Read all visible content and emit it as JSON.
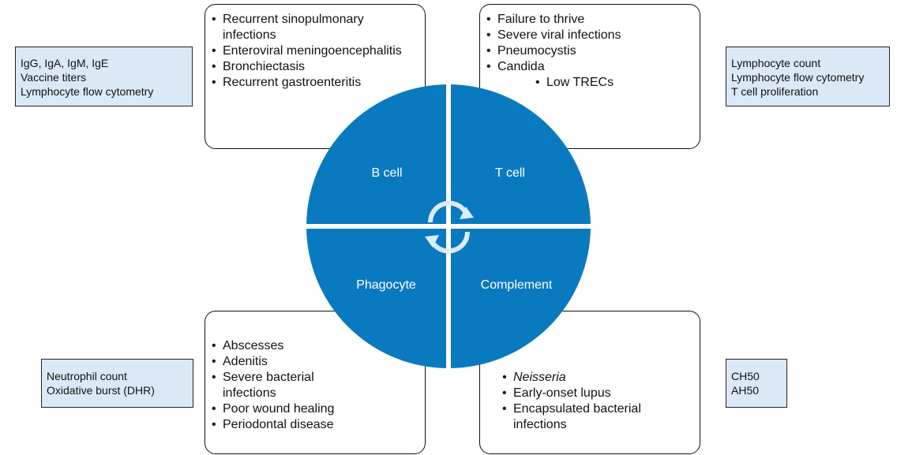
{
  "colors": {
    "quadrant": "#0a7ac0",
    "info_fill": "#dbe9f7",
    "text_on_blue": "#ffffff"
  },
  "quadrants": {
    "b_cell": "B cell",
    "t_cell": "T cell",
    "phagocyte": "Phagocyte",
    "complement": "Complement"
  },
  "b_cell": {
    "symptoms": [
      "Recurrent sinopulmonary infections",
      "Enteroviral meningoencephalitis",
      "Bronchiectasis",
      "Recurrent gastroenteritis"
    ],
    "tests": [
      "IgG, IgA, IgM, IgE",
      "Vaccine titers",
      "Lymphocyte flow cytometry"
    ]
  },
  "t_cell": {
    "symptoms": [
      "Failure to thrive",
      "Severe viral infections",
      "Pneumocystis",
      "Candida",
      "Low TRECs"
    ],
    "tests": [
      "Lymphocyte count",
      "Lymphocyte flow cytometry",
      "T cell proliferation"
    ]
  },
  "phagocyte": {
    "symptoms": [
      "Abscesses",
      "Adenitis",
      "Severe bacterial infections",
      "Poor wound healing",
      "Periodontal disease"
    ],
    "tests": [
      "Neutrophil count",
      "Oxidative burst (DHR)"
    ]
  },
  "complement": {
    "symptoms": [
      "Neisseria",
      "Early-onset lupus",
      "Encapsulated bacterial infections"
    ],
    "tests": [
      "CH50",
      "AH50"
    ]
  },
  "icons": {
    "center": "circular-arrows-icon"
  }
}
